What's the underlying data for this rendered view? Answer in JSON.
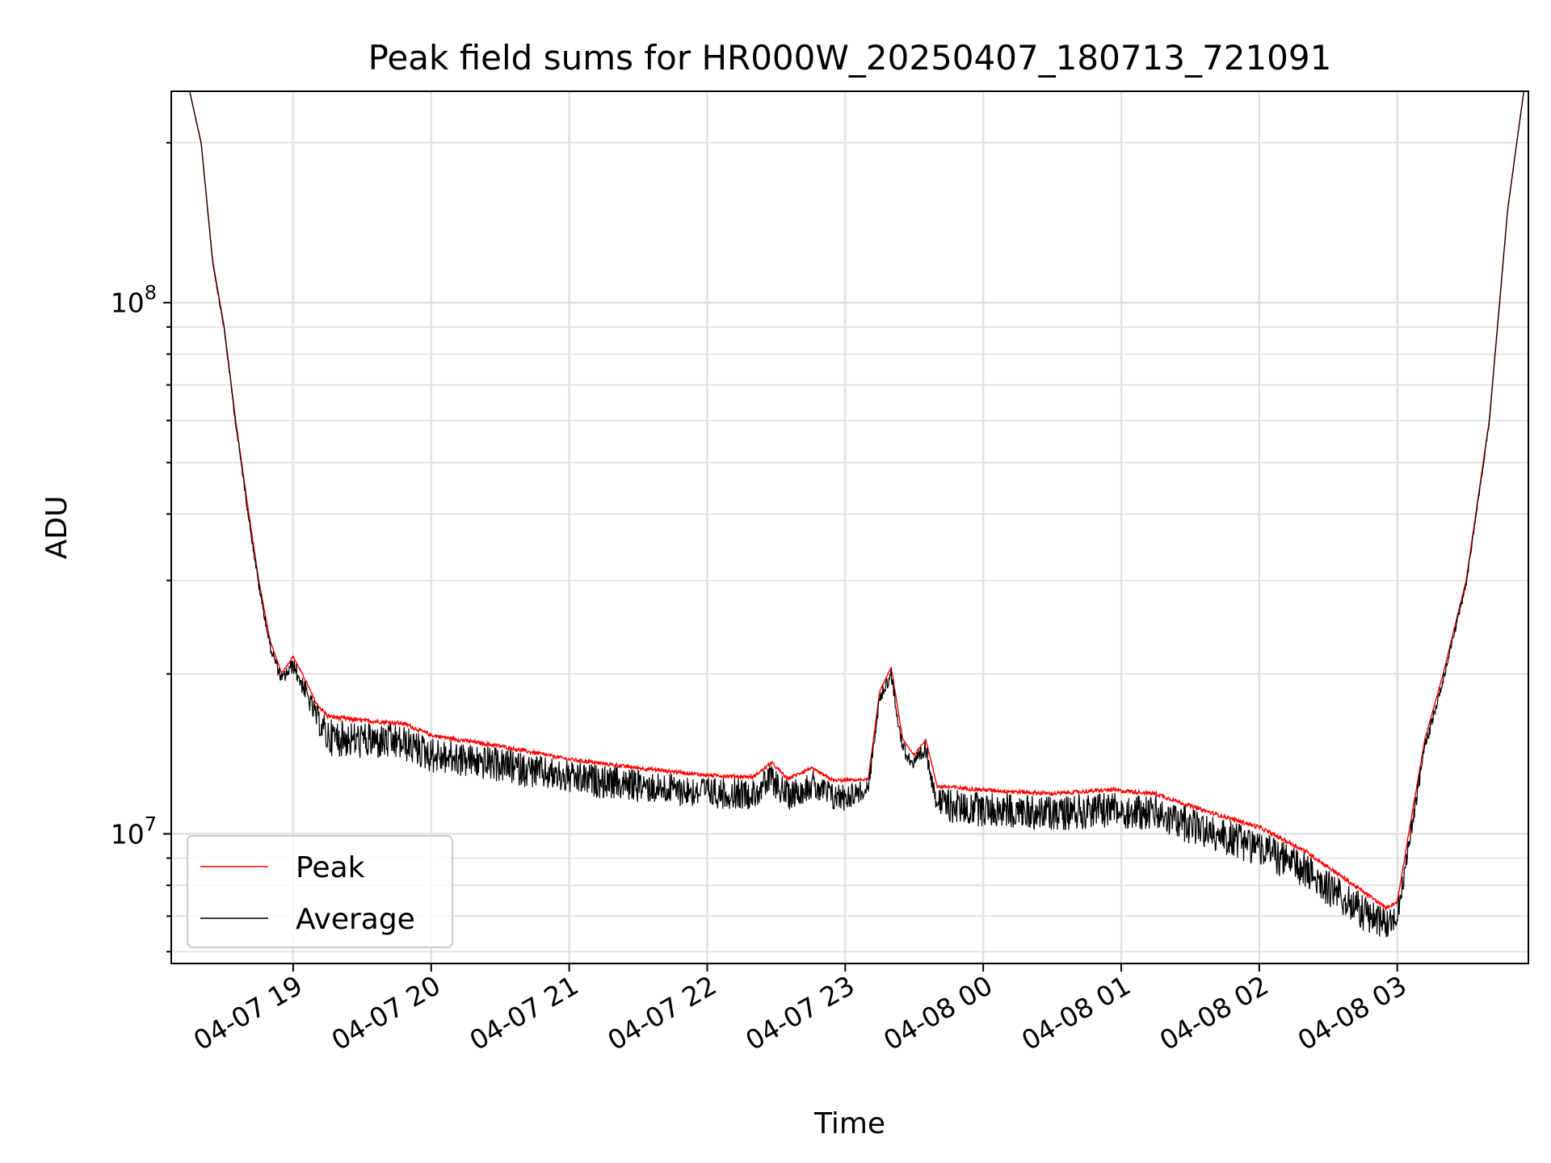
{
  "chart_data": {
    "type": "line",
    "title": "Peak field sums for HR000W_20250407_180713_721091",
    "xlabel": "Time",
    "ylabel": "ADU",
    "yscale": "log",
    "ylim": [
      5700000,
      250000000
    ],
    "xlim": [
      "2025-04-07 18:07",
      "2025-04-08 03:57"
    ],
    "grid": true,
    "legend": "lower-left",
    "x_ticks": [
      "2025-04-07 19:00",
      "2025-04-07 20:00",
      "2025-04-07 21:00",
      "2025-04-07 22:00",
      "2025-04-07 23:00",
      "2025-04-08 00:00",
      "2025-04-08 01:00",
      "2025-04-08 02:00",
      "2025-04-08 03:00"
    ],
    "x_tick_labels": [
      "04-07 19",
      "04-07 20",
      "04-07 21",
      "04-07 22",
      "04-07 23",
      "04-08 00",
      "04-08 01",
      "04-08 02",
      "04-08 03"
    ],
    "y_major_ticks": [
      10000000,
      100000000
    ],
    "y_tick_labels": [
      {
        "base": "10",
        "exp": "7"
      },
      {
        "base": "10",
        "exp": "8"
      }
    ],
    "series": [
      {
        "name": "Peak",
        "color": "#ff0000",
        "points": [
          [
            "2025-04-07 18:15",
            250000000
          ],
          [
            "2025-04-07 18:20",
            200000000
          ],
          [
            "2025-04-07 18:25",
            120000000
          ],
          [
            "2025-04-07 18:30",
            90000000
          ],
          [
            "2025-04-07 18:35",
            60000000
          ],
          [
            "2025-04-07 18:40",
            42000000
          ],
          [
            "2025-04-07 18:45",
            30000000
          ],
          [
            "2025-04-07 18:50",
            23000000
          ],
          [
            "2025-04-07 18:55",
            20000000
          ],
          [
            "2025-04-07 19:00",
            21500000
          ],
          [
            "2025-04-07 19:05",
            19500000
          ],
          [
            "2025-04-07 19:10",
            17500000
          ],
          [
            "2025-04-07 19:15",
            16500000
          ],
          [
            "2025-04-07 19:30",
            16200000
          ],
          [
            "2025-04-07 19:48",
            16000000
          ],
          [
            "2025-04-07 20:00",
            15200000
          ],
          [
            "2025-04-07 20:30",
            14500000
          ],
          [
            "2025-04-07 21:00",
            13700000
          ],
          [
            "2025-04-07 21:30",
            13200000
          ],
          [
            "2025-04-07 22:00",
            12800000
          ],
          [
            "2025-04-07 22:20",
            12700000
          ],
          [
            "2025-04-07 22:28",
            13500000
          ],
          [
            "2025-04-07 22:35",
            12600000
          ],
          [
            "2025-04-07 22:45",
            13200000
          ],
          [
            "2025-04-07 22:55",
            12500000
          ],
          [
            "2025-04-07 23:10",
            12600000
          ],
          [
            "2025-04-07 23:15",
            18500000
          ],
          [
            "2025-04-07 23:20",
            20500000
          ],
          [
            "2025-04-07 23:25",
            15000000
          ],
          [
            "2025-04-07 23:30",
            14000000
          ],
          [
            "2025-04-07 23:35",
            15000000
          ],
          [
            "2025-04-07 23:40",
            12200000
          ],
          [
            "2025-04-08 00:00",
            12000000
          ],
          [
            "2025-04-08 00:30",
            11800000
          ],
          [
            "2025-04-08 00:55",
            12000000
          ],
          [
            "2025-04-08 01:15",
            11800000
          ],
          [
            "2025-04-08 01:35",
            11000000
          ],
          [
            "2025-04-08 02:00",
            10200000
          ],
          [
            "2025-04-08 02:20",
            9200000
          ],
          [
            "2025-04-08 02:40",
            8000000
          ],
          [
            "2025-04-08 02:55",
            7200000
          ],
          [
            "2025-04-08 03:00",
            7400000
          ],
          [
            "2025-04-08 03:05",
            10000000
          ],
          [
            "2025-04-08 03:12",
            15000000
          ],
          [
            "2025-04-08 03:20",
            20000000
          ],
          [
            "2025-04-08 03:30",
            30000000
          ],
          [
            "2025-04-08 03:40",
            60000000
          ],
          [
            "2025-04-08 03:48",
            150000000
          ],
          [
            "2025-04-08 03:55",
            250000000
          ]
        ]
      },
      {
        "name": "Average",
        "color": "#000000",
        "noise": [
          [
            "2025-04-07 18:15",
            0
          ],
          [
            "2025-04-07 18:55",
            0.05
          ],
          [
            "2025-04-07 19:10",
            0.1
          ],
          [
            "2025-04-07 19:15",
            0.15
          ],
          [
            "2025-04-07 23:00",
            0.12
          ],
          [
            "2025-04-07 23:15",
            0.05
          ],
          [
            "2025-04-07 23:35",
            0.08
          ],
          [
            "2025-04-07 23:45",
            0.14
          ],
          [
            "2025-04-08 02:50",
            0.15
          ],
          [
            "2025-04-08 03:05",
            0.08
          ],
          [
            "2025-04-08 03:20",
            0.04
          ],
          [
            "2025-04-08 03:55",
            0
          ]
        ]
      }
    ]
  }
}
